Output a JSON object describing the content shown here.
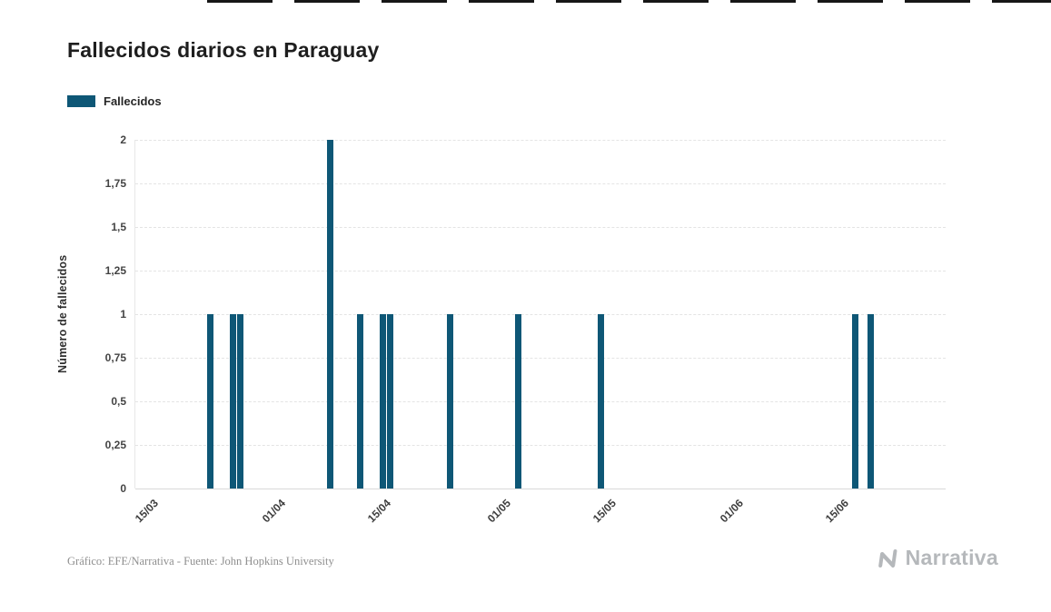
{
  "header": {
    "title": "Fallecidos diarios en Paraguay"
  },
  "legend": {
    "label": "Fallecidos"
  },
  "footer": {
    "credits": "Gráfico: EFE/Narrativa - Fuente: John Hopkins University",
    "brand": "Narrativa"
  },
  "colors": {
    "bar": "#0e5776",
    "grid": "#e4e4e4",
    "title": "#1e1e1e",
    "ticks": "#3d3d3d",
    "credits": "#8f8f8f",
    "brand": "#b5b8bb"
  },
  "chart_data": {
    "type": "bar",
    "title": "Fallecidos diarios en Paraguay",
    "xlabel": "",
    "ylabel": "Número de fallecidos",
    "ylim": [
      0,
      2
    ],
    "y_ticks": [
      0,
      0.25,
      0.5,
      0.75,
      1,
      1.25,
      1.5,
      1.75,
      2
    ],
    "y_tick_labels": [
      "0",
      "0,25",
      "0,5",
      "0,75",
      "1",
      "1,25",
      "1,5",
      "1,75",
      "2"
    ],
    "grid": true,
    "legend_position": "top-left",
    "x_domain_days": 108,
    "x_ticks": [
      {
        "day": 3,
        "label": "15/03"
      },
      {
        "day": 20,
        "label": "01/04"
      },
      {
        "day": 34,
        "label": "15/04"
      },
      {
        "day": 50,
        "label": "01/05"
      },
      {
        "day": 64,
        "label": "15/05"
      },
      {
        "day": 81,
        "label": "01/06"
      },
      {
        "day": 95,
        "label": "15/06"
      }
    ],
    "series": [
      {
        "name": "Fallecidos",
        "color": "#0e5776",
        "points": [
          {
            "date": "22/03",
            "day": 10,
            "value": 1
          },
          {
            "date": "25/03",
            "day": 13,
            "value": 1
          },
          {
            "date": "26/03",
            "day": 14,
            "value": 1
          },
          {
            "date": "07/04",
            "day": 26,
            "value": 2
          },
          {
            "date": "11/04",
            "day": 30,
            "value": 1
          },
          {
            "date": "14/04",
            "day": 33,
            "value": 1
          },
          {
            "date": "15/04",
            "day": 34,
            "value": 1
          },
          {
            "date": "23/04",
            "day": 42,
            "value": 1
          },
          {
            "date": "02/05",
            "day": 51,
            "value": 1
          },
          {
            "date": "13/05",
            "day": 62,
            "value": 1
          },
          {
            "date": "16/06",
            "day": 96,
            "value": 1
          },
          {
            "date": "18/06",
            "day": 98,
            "value": 1
          }
        ]
      }
    ]
  }
}
